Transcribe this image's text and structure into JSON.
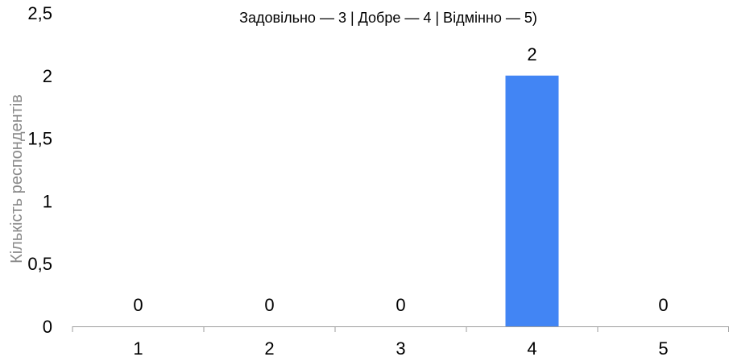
{
  "chart_data": {
    "type": "bar",
    "title": "Задовільно — 3 | Добре — 4 | Відмінно — 5)",
    "xlabel": "",
    "ylabel": "Кількість респондентів",
    "categories": [
      "1",
      "2",
      "3",
      "4",
      "5"
    ],
    "values": [
      0,
      0,
      0,
      2,
      0
    ],
    "data_labels": [
      "0",
      "0",
      "0",
      "2",
      "0"
    ],
    "ylim": [
      0,
      2.5
    ],
    "y_ticks": [
      0,
      0.5,
      1,
      1.5,
      2,
      2.5
    ],
    "y_tick_labels": [
      "0",
      "0,5",
      "1",
      "1,5",
      "2",
      "2,5"
    ],
    "grid": false,
    "legend": "none",
    "bar_color": "#4285F4",
    "axis_color": "#9e9e9e"
  }
}
